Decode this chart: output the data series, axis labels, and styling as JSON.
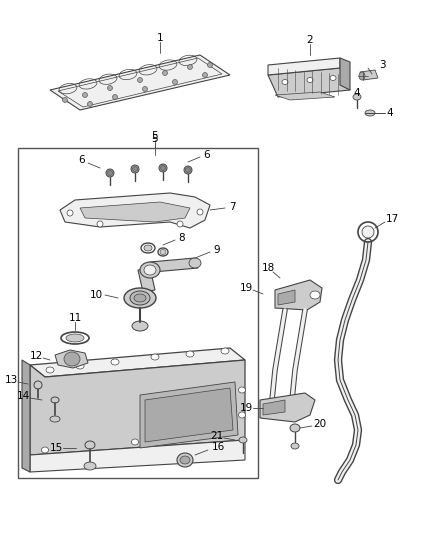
{
  "background_color": "#ffffff",
  "outline_color": "#444444",
  "label_color": "#000000",
  "label_fontsize": 7.5,
  "fig_width": 4.38,
  "fig_height": 5.33,
  "dpi": 100,
  "part_fill": "#e8e8e8",
  "part_dark": "#aaaaaa",
  "part_mid": "#cccccc",
  "part_light": "#f0f0f0"
}
